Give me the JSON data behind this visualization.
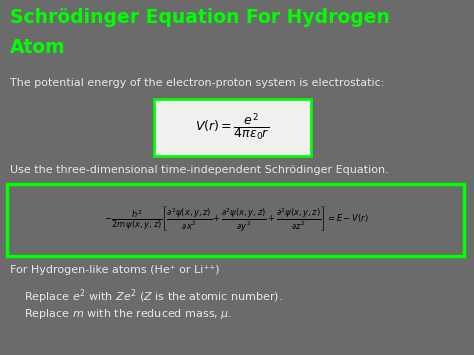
{
  "bg_color": "#6b6b6b",
  "title_line1": "Schrödinger Equation For Hydrogen",
  "title_line2": "Atom",
  "title_color": "#00ff00",
  "title_fontsize": 13.5,
  "body_text_color": "#e8e8e8",
  "body_fontsize": 8.0,
  "green_border_color": "#00ff00",
  "white_box_color": "#f0f0f0",
  "line1": "The potential energy of the electron-proton system is electrostatic:",
  "line3": "Use the three-dimensional time-independent Schrödinger Equation.",
  "footer1": "For Hydrogen-like atoms (He⁺ or Li⁺⁺)",
  "footer2": "    Replace $e^2$ with $Ze^2$ ($Z$ is the atomic number).",
  "footer3": "    Replace $m$ with the reduced mass, $\\mu$.",
  "eq1": "$V(r) = \\dfrac{e^2}{4\\pi\\varepsilon_0 r}$",
  "eq2": "$-\\dfrac{h^2}{2m\\,\\psi(x,y,z)}\\left[\\dfrac{\\partial^2\\psi(x,y,z)}{\\partial x^2} + \\dfrac{\\partial^2\\psi(x,y,z)}{\\partial y^2} + \\dfrac{\\partial^2\\psi(x,y,z)}{\\partial z^2}\\right] = E - V(r)$"
}
